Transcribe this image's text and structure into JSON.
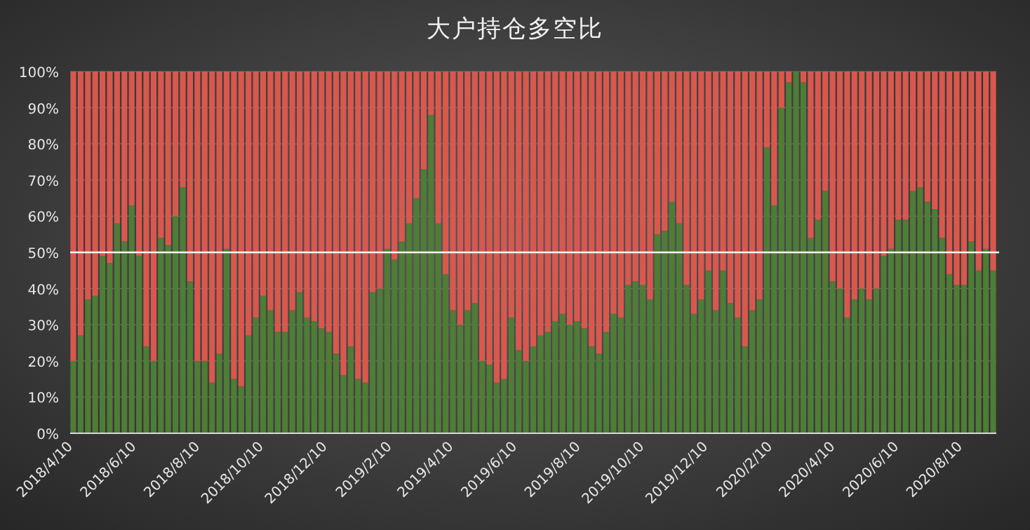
{
  "chart_data": {
    "type": "bar",
    "title": "大户持仓多空比",
    "stacked": true,
    "grid": "y",
    "x": [
      "2018-04-10",
      "2018-04-17",
      "2018-04-24",
      "2018-05-01",
      "2018-05-08",
      "2018-05-15",
      "2018-05-22",
      "2018-05-29",
      "2018-06-05",
      "2018-06-12",
      "2018-06-19",
      "2018-06-26",
      "2018-07-03",
      "2018-07-10",
      "2018-07-17",
      "2018-07-24",
      "2018-07-31",
      "2018-08-07",
      "2018-08-14",
      "2018-08-21",
      "2018-08-28",
      "2018-09-04",
      "2018-09-11",
      "2018-09-18",
      "2018-09-25",
      "2018-10-02",
      "2018-10-09",
      "2018-10-16",
      "2018-10-23",
      "2018-10-30",
      "2018-11-06",
      "2018-11-13",
      "2018-11-20",
      "2018-11-27",
      "2018-12-04",
      "2018-12-11",
      "2018-12-18",
      "2018-12-25",
      "2019-01-01",
      "2019-01-08",
      "2019-01-15",
      "2019-01-22",
      "2019-01-29",
      "2019-02-05",
      "2019-02-12",
      "2019-02-19",
      "2019-02-26",
      "2019-03-05",
      "2019-03-12",
      "2019-03-19",
      "2019-03-26",
      "2019-04-02",
      "2019-04-09",
      "2019-04-16",
      "2019-04-23",
      "2019-04-30",
      "2019-05-07",
      "2019-05-14",
      "2019-05-21",
      "2019-05-28",
      "2019-06-04",
      "2019-06-11",
      "2019-06-18",
      "2019-06-25",
      "2019-07-02",
      "2019-07-09",
      "2019-07-16",
      "2019-07-23",
      "2019-07-30",
      "2019-08-06",
      "2019-08-13",
      "2019-08-20",
      "2019-08-27",
      "2019-09-03",
      "2019-09-10",
      "2019-09-17",
      "2019-09-24",
      "2019-10-01",
      "2019-10-08",
      "2019-10-15",
      "2019-10-22",
      "2019-10-29",
      "2019-11-05",
      "2019-11-12",
      "2019-11-19",
      "2019-11-26",
      "2019-12-03",
      "2019-12-10",
      "2019-12-17",
      "2019-12-24",
      "2019-12-31",
      "2020-01-07",
      "2020-01-14",
      "2020-01-21",
      "2020-01-28",
      "2020-02-04",
      "2020-02-11",
      "2020-02-18",
      "2020-02-25",
      "2020-03-03",
      "2020-03-10",
      "2020-03-17",
      "2020-03-24",
      "2020-03-31",
      "2020-04-07",
      "2020-04-14",
      "2020-04-21",
      "2020-04-28",
      "2020-05-05",
      "2020-05-12",
      "2020-05-19",
      "2020-05-26",
      "2020-06-02",
      "2020-06-09",
      "2020-06-16",
      "2020-06-23",
      "2020-06-30",
      "2020-07-07",
      "2020-07-14",
      "2020-07-21",
      "2020-07-28",
      "2020-08-04",
      "2020-08-11",
      "2020-08-18",
      "2020-08-25",
      "2020-09-01",
      "2020-09-08"
    ],
    "xlim": [
      "2018-04-07",
      "2020-09-11"
    ],
    "xticks": [
      {
        "value": "2018-04-10",
        "label": "2018/4/10"
      },
      {
        "value": "2018-06-10",
        "label": "2018/6/10"
      },
      {
        "value": "2018-08-10",
        "label": "2018/8/10"
      },
      {
        "value": "2018-10-10",
        "label": "2018/10/10"
      },
      {
        "value": "2018-12-10",
        "label": "2018/12/10"
      },
      {
        "value": "2019-02-10",
        "label": "2019/2/10"
      },
      {
        "value": "2019-04-10",
        "label": "2019/4/10"
      },
      {
        "value": "2019-06-10",
        "label": "2019/6/10"
      },
      {
        "value": "2019-08-10",
        "label": "2019/8/10"
      },
      {
        "value": "2019-10-10",
        "label": "2019/10/10"
      },
      {
        "value": "2019-12-10",
        "label": "2019/12/10"
      },
      {
        "value": "2020-02-10",
        "label": "2020/2/10"
      },
      {
        "value": "2020-04-10",
        "label": "2020/4/10"
      },
      {
        "value": "2020-06-10",
        "label": "2020/6/10"
      },
      {
        "value": "2020-08-10",
        "label": "2020/8/10"
      }
    ],
    "ylim": [
      0,
      100
    ],
    "yticks": [
      {
        "value": 0,
        "label": "0%"
      },
      {
        "value": 10,
        "label": "10%"
      },
      {
        "value": 20,
        "label": "20%"
      },
      {
        "value": 30,
        "label": "30%"
      },
      {
        "value": 40,
        "label": "40%"
      },
      {
        "value": 50,
        "label": "50%"
      },
      {
        "value": 60,
        "label": "60%"
      },
      {
        "value": 70,
        "label": "70%"
      },
      {
        "value": 80,
        "label": "80%"
      },
      {
        "value": 90,
        "label": "90%"
      },
      {
        "value": 100,
        "label": "100%"
      }
    ],
    "ref_lines": [
      {
        "axis": "y",
        "value": 50,
        "color": "#ffffff"
      }
    ],
    "series": [
      {
        "color": "#4f7c36",
        "values": [
          20,
          27,
          37,
          38,
          49,
          47,
          58,
          53,
          63,
          49,
          24,
          20,
          54,
          52,
          60,
          68,
          42,
          20,
          20,
          14,
          22,
          51,
          15,
          13,
          27,
          32,
          38,
          34,
          28,
          28,
          34,
          39,
          32,
          31,
          29,
          28,
          22,
          16,
          24,
          15,
          14,
          39,
          40,
          51,
          48,
          53,
          58,
          65,
          73,
          88,
          58,
          44,
          34,
          30,
          34,
          36,
          20,
          19,
          14,
          15,
          32,
          23,
          20,
          24,
          27,
          28,
          31,
          33,
          30,
          31,
          29,
          24,
          22,
          28,
          33,
          32,
          41,
          42,
          41,
          37,
          55,
          56,
          64,
          58,
          41,
          33,
          37,
          45,
          34,
          45,
          36,
          32,
          24,
          34,
          37,
          79,
          63,
          90,
          97,
          100,
          97,
          54,
          59,
          67,
          42,
          40,
          32,
          37,
          40,
          37,
          40,
          49,
          51,
          59,
          59,
          67,
          68,
          64,
          62,
          54,
          44,
          41,
          41,
          53,
          45,
          51,
          45
        ]
      },
      {
        "color": "#d9584e",
        "values": [
          80,
          73,
          63,
          62,
          51,
          53,
          42,
          47,
          37,
          51,
          76,
          80,
          46,
          48,
          40,
          32,
          58,
          80,
          80,
          86,
          78,
          49,
          85,
          87,
          73,
          68,
          62,
          66,
          72,
          72,
          66,
          61,
          68,
          69,
          71,
          72,
          78,
          84,
          76,
          85,
          86,
          61,
          60,
          49,
          52,
          47,
          42,
          35,
          27,
          12,
          42,
          56,
          66,
          70,
          66,
          64,
          80,
          81,
          86,
          85,
          68,
          77,
          80,
          76,
          73,
          72,
          69,
          67,
          70,
          69,
          71,
          76,
          78,
          72,
          67,
          68,
          59,
          58,
          59,
          63,
          45,
          44,
          36,
          42,
          59,
          67,
          63,
          55,
          66,
          55,
          64,
          68,
          76,
          66,
          63,
          21,
          37,
          10,
          3,
          0,
          3,
          46,
          41,
          33,
          58,
          60,
          68,
          63,
          60,
          63,
          60,
          51,
          49,
          41,
          41,
          33,
          32,
          36,
          38,
          46,
          56,
          59,
          59,
          47,
          55,
          49,
          55
        ]
      }
    ]
  }
}
